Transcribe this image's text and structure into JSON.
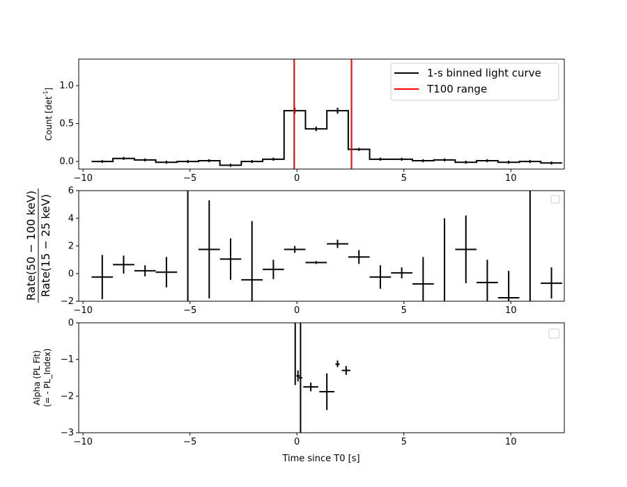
{
  "chart_data": [
    {
      "type": "line",
      "style": "step-histogram with error bars",
      "ylabel": "Count [det",
      "ylabel_sup": "-1",
      "ylabel_suffix": "]",
      "xlim": [
        -10.2,
        12.5
      ],
      "ylim": [
        -0.1,
        1.35
      ],
      "xticks": [
        -10,
        -5,
        0,
        5,
        10
      ],
      "xtick_labels": [
        "−10",
        "−5",
        "0",
        "5",
        "10"
      ],
      "yticks": [
        0.0,
        0.5,
        1.0
      ],
      "ytick_labels": [
        "0.0",
        "0.5",
        "1.0"
      ],
      "grid": false,
      "legend_position": "top-right",
      "legend": [
        {
          "label": "1-s binned light curve",
          "color": "#000000"
        },
        {
          "label": "T100 range",
          "color": "#ff0000"
        }
      ],
      "vlines": {
        "x": [
          -0.13,
          2.55
        ],
        "color": "#ff0000"
      },
      "series": [
        {
          "name": "1-s binned light curve",
          "color": "#000000",
          "bin_width": 1.0,
          "x": [
            -9.1,
            -8.1,
            -7.1,
            -6.1,
            -5.1,
            -4.1,
            -3.1,
            -2.1,
            -1.1,
            -0.1,
            0.9,
            1.9,
            2.9,
            3.9,
            4.9,
            5.9,
            6.9,
            7.9,
            8.9,
            9.9,
            10.9,
            11.9
          ],
          "y": [
            0.0,
            0.04,
            0.02,
            -0.01,
            0.0,
            0.01,
            -0.05,
            0.0,
            0.03,
            0.67,
            0.43,
            0.67,
            0.16,
            0.03,
            0.03,
            0.01,
            0.02,
            -0.01,
            0.01,
            -0.01,
            0.0,
            -0.02
          ],
          "yerr": [
            0.02,
            0.02,
            0.02,
            0.02,
            0.02,
            0.02,
            0.02,
            0.02,
            0.02,
            0.04,
            0.03,
            0.04,
            0.02,
            0.02,
            0.02,
            0.02,
            0.02,
            0.02,
            0.02,
            0.02,
            0.02,
            0.02
          ]
        }
      ]
    },
    {
      "type": "scatter",
      "style": "error-bar crosses",
      "ylabel_numerator": "Rate(50 − 100 keV)",
      "ylabel_denominator": "Rate(15 − 25 keV)",
      "xlim": [
        -10.2,
        12.5
      ],
      "ylim": [
        -2,
        6
      ],
      "xticks": [
        -10,
        -5,
        0,
        5,
        10
      ],
      "xtick_labels": [
        "−10",
        "−5",
        "0",
        "5",
        "10"
      ],
      "yticks": [
        -2,
        0,
        2,
        4,
        6
      ],
      "ytick_labels": [
        "−2",
        "0",
        "2",
        "4",
        "6"
      ],
      "grid": false,
      "legend_position": "top-right",
      "legend": [],
      "series": [
        {
          "color": "#000000",
          "x": [
            -9.1,
            -8.1,
            -7.1,
            -6.1,
            -5.1,
            -4.1,
            -3.1,
            -2.1,
            -1.1,
            -0.1,
            0.9,
            1.9,
            2.9,
            3.9,
            4.9,
            5.9,
            6.9,
            7.9,
            8.9,
            9.9,
            10.9,
            11.9
          ],
          "y": [
            -0.25,
            0.65,
            0.2,
            0.1,
            2.5,
            1.75,
            1.05,
            -0.45,
            0.3,
            1.75,
            0.8,
            2.15,
            1.2,
            -0.25,
            0.05,
            -0.75,
            1.0,
            1.75,
            -0.65,
            -1.75,
            2.0,
            -0.7
          ],
          "xerr": [
            0.5,
            0.5,
            0.5,
            0.5,
            0.0,
            0.5,
            0.5,
            0.5,
            0.5,
            0.5,
            0.5,
            0.5,
            0.5,
            0.5,
            0.5,
            0.5,
            0.0,
            0.5,
            0.5,
            0.5,
            0.0,
            0.5
          ],
          "yerr_low": [
            1.6,
            0.65,
            0.4,
            1.1,
            5.0,
            3.55,
            1.5,
            3.5,
            0.7,
            0.25,
            0.1,
            0.3,
            0.5,
            0.85,
            0.4,
            1.25,
            4.0,
            2.45,
            1.35,
            0.5,
            5.0,
            1.1
          ],
          "yerr_high": [
            1.6,
            0.65,
            0.4,
            1.1,
            5.0,
            3.55,
            1.5,
            4.25,
            0.7,
            0.25,
            0.1,
            0.3,
            0.5,
            0.85,
            0.4,
            1.95,
            3.0,
            2.45,
            1.65,
            1.95,
            5.0,
            1.15
          ]
        }
      ]
    },
    {
      "type": "scatter",
      "style": "error-bar crosses",
      "ylabel_line1": "Alpha (PL Fit)",
      "ylabel_line2": "(= - PL_Index)",
      "xlabel": "Time since T0 [s]",
      "xlim": [
        -10.2,
        12.5
      ],
      "ylim": [
        -3,
        0
      ],
      "xticks": [
        -10,
        -5,
        0,
        5,
        10
      ],
      "xtick_labels": [
        "−10",
        "−5",
        "0",
        "5",
        "10"
      ],
      "yticks": [
        -3,
        -2,
        -1,
        0
      ],
      "ytick_labels": [
        "−3",
        "−2",
        "−1",
        "0"
      ],
      "grid": false,
      "legend_position": "top-right",
      "legend": [],
      "series": [
        {
          "color": "#000000",
          "x": [
            -0.08,
            0.05,
            0.17,
            0.65,
            1.4,
            1.9,
            2.3
          ],
          "y": [
            -0.9,
            -1.45,
            -1.5,
            -1.75,
            -1.88,
            -1.13,
            -1.3
          ],
          "xerr": [
            0.0,
            0.08,
            0.08,
            0.35,
            0.35,
            0.1,
            0.2
          ],
          "yerr_low": [
            0.8,
            0.15,
            1.6,
            0.12,
            0.5,
            0.08,
            0.12
          ],
          "yerr_high": [
            0.9,
            0.15,
            1.6,
            0.12,
            0.5,
            0.1,
            0.12
          ]
        }
      ]
    }
  ]
}
